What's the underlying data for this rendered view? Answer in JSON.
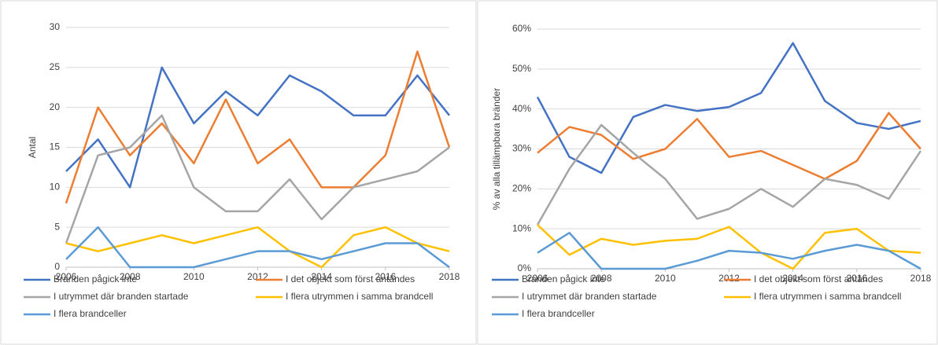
{
  "chart_data": [
    {
      "type": "line",
      "ylabel": "Antal",
      "grid": true,
      "x": [
        2006,
        2007,
        2008,
        2009,
        2010,
        2011,
        2012,
        2013,
        2014,
        2015,
        2016,
        2017,
        2018
      ],
      "xlim": [
        2006,
        2018
      ],
      "xticks": [
        2006,
        2008,
        2010,
        2012,
        2014,
        2016,
        2018
      ],
      "ylim": [
        0,
        30
      ],
      "yticks": [
        0,
        5,
        10,
        15,
        20,
        25,
        30
      ],
      "series": [
        {
          "name": "Branden pågick inte",
          "color": "#4472c4",
          "values": [
            12,
            16,
            10,
            25,
            18,
            22,
            19,
            24,
            22,
            19,
            19,
            24,
            19
          ]
        },
        {
          "name": "I det objekt som först antändes",
          "color": "#ed7d31",
          "values": [
            8,
            20,
            14,
            18,
            13,
            21,
            13,
            16,
            10,
            10,
            14,
            27,
            15
          ]
        },
        {
          "name": "I utrymmet där branden startade",
          "color": "#a5a5a5",
          "values": [
            3,
            14,
            15,
            19,
            10,
            7,
            7,
            11,
            6,
            10,
            11,
            12,
            15
          ]
        },
        {
          "name": "I flera utrymmen i samma brandcell",
          "color": "#ffc000",
          "values": [
            3,
            2,
            3,
            4,
            3,
            4,
            5,
            2,
            0,
            4,
            5,
            3,
            2
          ]
        },
        {
          "name": "I flera brandceller",
          "color": "#5b9bd5",
          "values": [
            1,
            5,
            0,
            0,
            0,
            1,
            2,
            2,
            1,
            2,
            3,
            3,
            0
          ]
        }
      ]
    },
    {
      "type": "line",
      "ylabel": "% av alla tillämpbara bränder",
      "grid": true,
      "x": [
        2006,
        2007,
        2008,
        2009,
        2010,
        2011,
        2012,
        2013,
        2014,
        2015,
        2016,
        2017,
        2018
      ],
      "xlim": [
        2006,
        2018
      ],
      "xticks": [
        2006,
        2008,
        2010,
        2012,
        2014,
        2016,
        2018
      ],
      "ylim": [
        0,
        60
      ],
      "yticks": [
        {
          "value": 0,
          "label": "0%"
        },
        {
          "value": 10,
          "label": "10%"
        },
        {
          "value": 20,
          "label": "20%"
        },
        {
          "value": 30,
          "label": "30%"
        },
        {
          "value": 40,
          "label": "40%"
        },
        {
          "value": 50,
          "label": "50%"
        },
        {
          "value": 60,
          "label": "60%"
        }
      ],
      "series": [
        {
          "name": "Branden pågick inte",
          "color": "#4472c4",
          "values": [
            43,
            28,
            24,
            38,
            41,
            39.5,
            40.5,
            44,
            56.5,
            42,
            36.5,
            35,
            37
          ]
        },
        {
          "name": "I det objekt som först antändes",
          "color": "#ed7d31",
          "values": [
            29,
            35.5,
            33.5,
            27.5,
            30,
            37.5,
            28,
            29.5,
            26,
            22.5,
            27,
            39,
            30
          ]
        },
        {
          "name": "I utrymmet där branden startade",
          "color": "#a5a5a5",
          "values": [
            11,
            25,
            36,
            29,
            22.5,
            12.5,
            15,
            20,
            15.5,
            22.5,
            21,
            17.5,
            29.5
          ]
        },
        {
          "name": "I flera utrymmen i samma brandcell",
          "color": "#ffc000",
          "values": [
            11,
            3.5,
            7.5,
            6,
            7,
            7.5,
            10.5,
            4,
            0,
            9,
            10,
            4.5,
            4
          ]
        },
        {
          "name": "I flera brandceller",
          "color": "#5b9bd5",
          "values": [
            4,
            9,
            0,
            0,
            0,
            2,
            4.5,
            4,
            2.5,
            4.5,
            6,
            4.5,
            0
          ]
        }
      ]
    }
  ]
}
